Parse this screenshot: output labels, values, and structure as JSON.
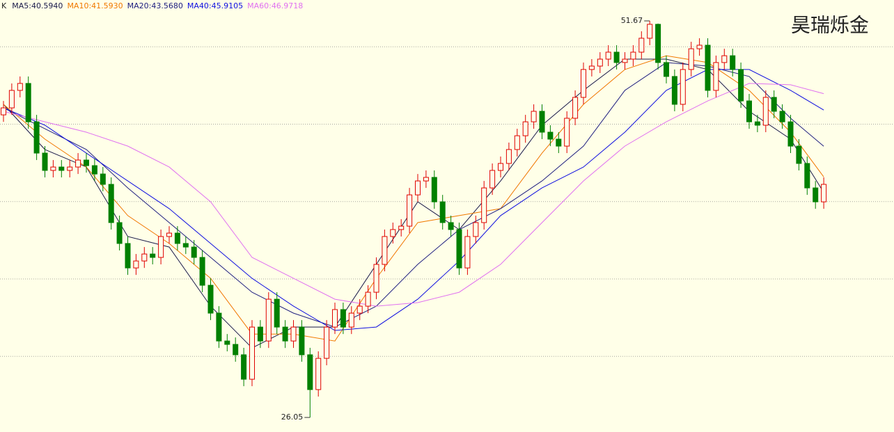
{
  "chart_data": {
    "type": "candlestick",
    "corner_label": "K",
    "watermark": "昊瑞烁金",
    "ylim": [
      25.11,
      53.02
    ],
    "gridlines": [
      30,
      35,
      40,
      45,
      50
    ],
    "up_color": "#e00000",
    "down_color": "#008000",
    "open": [
      45.6,
      46.05,
      47.18,
      47.63,
      45.15,
      43.13,
      42.01,
      42.23,
      42.01,
      42.23,
      42.68,
      42.32,
      41.78,
      41.11,
      38.64,
      37.29,
      35.71,
      36.16,
      36.61,
      36.39,
      37.74,
      37.96,
      37.29,
      37.06,
      36.39,
      34.59,
      32.79,
      30.99,
      30.77,
      30.1,
      28.52,
      31.89,
      30.99,
      33.69,
      31.89,
      30.99,
      31.89,
      30.1,
      27.85,
      29.87,
      31.89,
      33.02,
      31.89,
      32.79,
      33.24,
      34.14,
      35.94,
      37.74,
      38.19,
      38.41,
      40.43,
      41.33,
      41.56,
      39.98,
      38.64,
      38.19,
      35.71,
      37.74,
      38.64,
      40.88,
      42.01,
      42.46,
      43.36,
      44.25,
      45.15,
      45.83,
      44.48,
      44.03,
      43.58,
      45.38,
      46.73,
      48.53,
      48.75,
      49.2,
      49.65,
      48.98,
      49.2,
      49.65,
      50.55,
      51.45,
      48.98,
      48.08,
      46.28,
      48.53,
      49.87,
      50.1,
      47.18,
      48.98,
      49.42,
      48.53,
      46.5,
      45.15,
      44.93,
      46.73,
      45.83,
      45.15,
      43.58,
      42.46,
      40.88,
      39.98
    ],
    "high": [
      46.5,
      47.63,
      48.08,
      48.08,
      45.6,
      43.58,
      42.68,
      42.68,
      42.68,
      43.13,
      43.13,
      42.77,
      42.23,
      41.56,
      39.09,
      37.74,
      36.61,
      37.06,
      37.06,
      38.19,
      38.41,
      38.41,
      37.74,
      37.51,
      36.84,
      35.04,
      33.24,
      31.44,
      31.22,
      30.55,
      32.34,
      32.34,
      34.14,
      34.14,
      32.34,
      32.34,
      32.34,
      30.55,
      30.32,
      32.34,
      33.47,
      33.47,
      33.24,
      33.69,
      34.59,
      36.39,
      38.19,
      38.64,
      38.86,
      40.88,
      41.78,
      42.01,
      42.01,
      40.43,
      39.09,
      38.64,
      38.19,
      39.09,
      41.33,
      42.46,
      42.91,
      43.81,
      44.7,
      45.6,
      46.28,
      46.28,
      44.93,
      44.48,
      45.83,
      47.18,
      48.98,
      49.2,
      49.65,
      50.1,
      50.1,
      49.65,
      50.1,
      51.0,
      51.67,
      51.5,
      49.43,
      48.53,
      48.98,
      50.32,
      50.55,
      50.55,
      49.43,
      49.87,
      49.87,
      48.98,
      46.95,
      45.6,
      47.18,
      47.18,
      46.28,
      45.6,
      44.03,
      42.91,
      41.33,
      41.56
    ],
    "low": [
      45.15,
      45.6,
      46.73,
      44.7,
      42.68,
      41.56,
      41.56,
      41.56,
      41.56,
      41.78,
      41.87,
      41.33,
      40.66,
      38.19,
      36.84,
      35.26,
      35.26,
      35.71,
      35.94,
      35.94,
      37.29,
      36.84,
      36.61,
      35.94,
      34.14,
      32.34,
      30.54,
      30.32,
      29.65,
      28.07,
      28.07,
      30.54,
      30.54,
      31.44,
      30.54,
      30.54,
      29.65,
      26.05,
      27.4,
      29.42,
      31.44,
      31.44,
      31.44,
      32.34,
      32.79,
      33.69,
      35.49,
      37.29,
      37.74,
      37.96,
      39.98,
      40.88,
      39.53,
      38.19,
      37.74,
      35.26,
      35.26,
      37.29,
      38.19,
      40.43,
      41.56,
      42.01,
      42.91,
      43.8,
      44.7,
      44.03,
      43.58,
      43.13,
      43.13,
      44.93,
      46.28,
      48.08,
      48.3,
      48.75,
      48.53,
      48.53,
      48.75,
      49.2,
      50.1,
      48.53,
      47.63,
      45.83,
      45.83,
      48.08,
      49.42,
      46.73,
      46.73,
      48.53,
      48.08,
      46.05,
      44.7,
      44.48,
      44.48,
      45.38,
      44.7,
      43.13,
      42.01,
      40.43,
      39.53,
      39.53
    ],
    "close": [
      46.05,
      47.18,
      47.63,
      45.15,
      43.13,
      42.01,
      42.23,
      42.01,
      42.23,
      42.68,
      42.32,
      41.78,
      41.11,
      38.64,
      37.29,
      35.71,
      36.16,
      36.61,
      36.39,
      37.74,
      37.96,
      37.29,
      37.06,
      36.39,
      34.59,
      32.79,
      30.99,
      30.77,
      30.1,
      28.52,
      31.89,
      30.99,
      33.69,
      31.89,
      30.99,
      31.89,
      30.1,
      27.85,
      29.87,
      31.89,
      33.02,
      31.89,
      32.79,
      33.24,
      34.14,
      35.94,
      37.74,
      38.19,
      38.41,
      40.43,
      41.33,
      41.56,
      39.98,
      38.64,
      38.19,
      35.71,
      37.74,
      38.64,
      40.88,
      42.01,
      42.46,
      43.36,
      44.25,
      45.15,
      45.83,
      44.48,
      44.03,
      43.58,
      45.38,
      46.73,
      48.53,
      48.75,
      49.2,
      49.65,
      48.98,
      49.2,
      49.65,
      50.55,
      51.45,
      48.98,
      48.08,
      46.28,
      48.53,
      49.87,
      50.1,
      47.18,
      48.98,
      49.42,
      48.53,
      46.5,
      45.15,
      44.93,
      46.73,
      45.83,
      45.15,
      43.58,
      42.46,
      40.88,
      39.98,
      41.11
    ],
    "extreme_labels": [
      51.67,
      26.05
    ],
    "ma_x": [
      0,
      5,
      10,
      15,
      20,
      25,
      30,
      35,
      40,
      45,
      50,
      55,
      60,
      65,
      70,
      75,
      80,
      85,
      90,
      95,
      99
    ],
    "series": [
      {
        "name": "MA5:40.5940",
        "color": "#1a1a4a",
        "values": [
          46.28,
          43.36,
          42.23,
          37.74,
          37.06,
          33.24,
          30.54,
          31.89,
          31.89,
          35.94,
          39.98,
          38.19,
          41.33,
          44.93,
          47.18,
          49.2,
          49.2,
          48.53,
          45.83,
          44.03,
          40.59
        ]
      },
      {
        "name": "MA10:41.5930",
        "color": "#f07800",
        "values": [
          46.28,
          44.03,
          42.23,
          39.09,
          37.29,
          35.04,
          31.44,
          31.44,
          30.99,
          35.04,
          38.64,
          39.09,
          39.54,
          43.13,
          46.28,
          48.53,
          49.42,
          48.98,
          47.18,
          44.48,
          41.59
        ]
      },
      {
        "name": "MA20:43.5680",
        "color": "#202080",
        "values": [
          46.05,
          44.7,
          43.36,
          40.88,
          38.64,
          36.39,
          34.14,
          32.79,
          31.89,
          33.24,
          35.94,
          38.19,
          39.54,
          41.33,
          43.58,
          47.18,
          48.98,
          48.75,
          48.08,
          45.38,
          43.57
        ]
      },
      {
        "name": "MA40:45.9105",
        "color": "#1010e0",
        "values": [
          46.05,
          44.93,
          43.13,
          41.33,
          39.54,
          37.29,
          35.04,
          33.24,
          31.67,
          31.89,
          33.69,
          36.16,
          39.09,
          40.88,
          42.23,
          44.48,
          47.18,
          48.53,
          48.53,
          47.18,
          45.91
        ]
      },
      {
        "name": "MA60:46.9718",
        "color": "#e070f0",
        "values": [
          45.83,
          45.15,
          44.48,
          43.58,
          42.23,
          39.98,
          36.39,
          35.04,
          33.69,
          33.24,
          33.47,
          34.14,
          35.94,
          38.64,
          41.33,
          43.58,
          45.15,
          46.5,
          47.63,
          47.54,
          46.97
        ]
      }
    ]
  }
}
